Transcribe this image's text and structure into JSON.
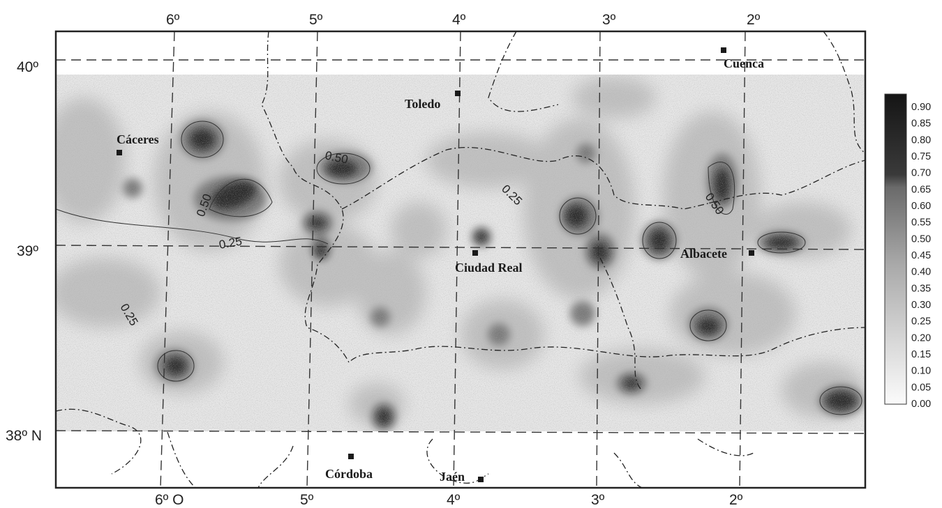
{
  "map": {
    "longitude_labels_top": [
      "6º",
      "5º",
      "4º",
      "3º",
      "2º"
    ],
    "longitude_labels_bottom": [
      "6º O",
      "5º",
      "4º",
      "3º",
      "2º"
    ],
    "latitude_labels": [
      "40º",
      "39º",
      "38º N"
    ],
    "cities": [
      {
        "name": "Cuenca"
      },
      {
        "name": "Toledo"
      },
      {
        "name": "Cáceres"
      },
      {
        "name": "Ciudad Real"
      },
      {
        "name": "Albacete"
      },
      {
        "name": "Córdoba"
      },
      {
        "name": "Jaén"
      }
    ],
    "contour_labels": [
      "0.50",
      "0.50",
      "0.25",
      "0.25",
      "0.50",
      "0.25"
    ],
    "colors": {
      "ink": "#1a1a1a",
      "frame": "#222222",
      "high": "#1e1e1e",
      "low": "#f4f4f4"
    }
  },
  "legend": {
    "ticks": [
      "0.90",
      "0.85",
      "0.80",
      "0.75",
      "0.70",
      "0.65",
      "0.60",
      "0.55",
      "0.50",
      "0.45",
      "0.40",
      "0.35",
      "0.30",
      "0.25",
      "0.20",
      "0.15",
      "0.10",
      "0.05",
      "0.00"
    ]
  }
}
